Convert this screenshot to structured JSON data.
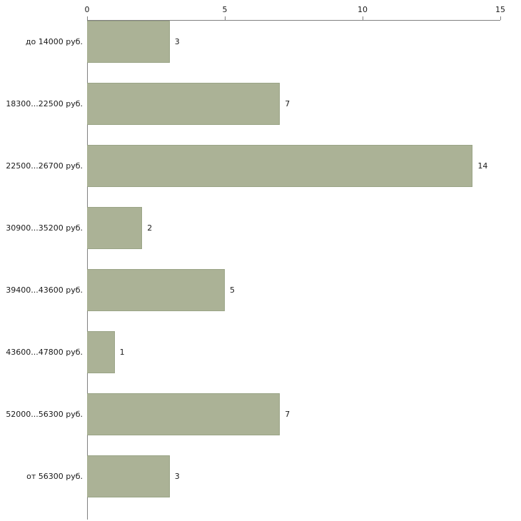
{
  "chart_data": {
    "type": "bar",
    "orientation": "horizontal",
    "title": "",
    "xlabel": "",
    "ylabel": "",
    "categories": [
      "до 14000 руб.",
      "18300...22500 руб.",
      "22500...26700 руб.",
      "30900...35200 руб.",
      "39400...43600 руб.",
      "43600...47800 руб.",
      "52000...56300 руб.",
      "от 56300 руб."
    ],
    "values": [
      3,
      7,
      14,
      2,
      5,
      1,
      7,
      3
    ],
    "x_ticks": [
      0,
      5,
      10,
      15
    ],
    "xlim": [
      0,
      15
    ],
    "grid": false,
    "legend": false,
    "axis_position": "top",
    "bar_color": "#abb296",
    "bar_border_color": "#9aa486",
    "axis_color": "#808080",
    "text_color": "#1a1a1a",
    "background_color": "#ffffff"
  }
}
